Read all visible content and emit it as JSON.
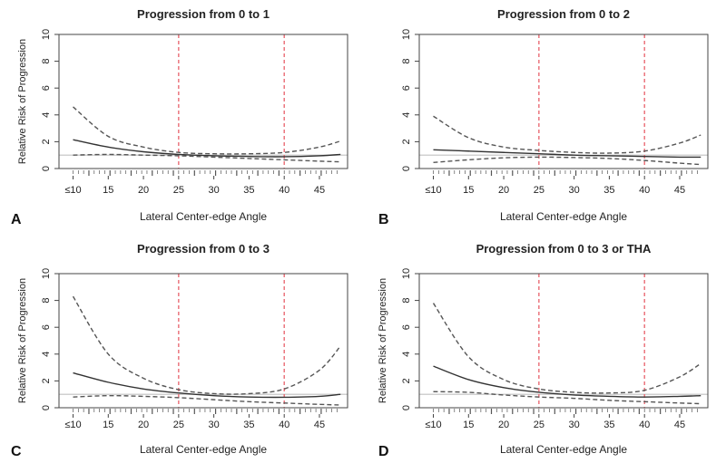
{
  "chart_data": [
    {
      "type": "line",
      "panel_letter": "A",
      "title": "Progression from 0 to  1",
      "xlabel": "Lateral Center-edge Angle",
      "ylabel": "Relative Risk of Progression",
      "xlim": [
        8,
        49
      ],
      "ylim": [
        0,
        10
      ],
      "x_ticks": [
        10,
        15,
        20,
        25,
        30,
        35,
        40,
        45
      ],
      "x_tick_labels": [
        "≤10",
        "15",
        "20",
        "25",
        "30",
        "35",
        "40",
        "45"
      ],
      "y_ticks": [
        0,
        2,
        4,
        6,
        8,
        10
      ],
      "reference_lines_x": [
        25,
        40
      ],
      "reference_line_y": 1,
      "x": [
        10,
        15,
        20,
        25,
        30,
        35,
        40,
        45,
        48
      ],
      "series": [
        {
          "role": "estimate",
          "values": [
            2.15,
            1.6,
            1.25,
            1.05,
            0.95,
            0.9,
            0.88,
            0.95,
            1.05
          ]
        },
        {
          "role": "upper_ci",
          "values": [
            4.6,
            2.4,
            1.6,
            1.2,
            1.1,
            1.1,
            1.2,
            1.6,
            2.05
          ]
        },
        {
          "role": "lower_ci",
          "values": [
            1.0,
            1.05,
            1.0,
            0.95,
            0.85,
            0.75,
            0.65,
            0.55,
            0.5
          ]
        }
      ]
    },
    {
      "type": "line",
      "panel_letter": "B",
      "title": "Progression from 0 to  2",
      "xlabel": "Lateral Center-edge Angle",
      "ylabel": "",
      "xlim": [
        8,
        49
      ],
      "ylim": [
        0,
        10
      ],
      "x_ticks": [
        10,
        15,
        20,
        25,
        30,
        35,
        40,
        45
      ],
      "x_tick_labels": [
        "≤10",
        "15",
        "20",
        "25",
        "30",
        "35",
        "40",
        "45"
      ],
      "y_ticks": [
        0,
        2,
        4,
        6,
        8,
        10
      ],
      "reference_lines_x": [
        25,
        40
      ],
      "reference_line_y": 1,
      "x": [
        10,
        15,
        20,
        25,
        30,
        35,
        40,
        45,
        48
      ],
      "series": [
        {
          "role": "estimate",
          "values": [
            1.4,
            1.3,
            1.2,
            1.1,
            1.0,
            0.95,
            0.9,
            0.85,
            0.85
          ]
        },
        {
          "role": "upper_ci",
          "values": [
            3.9,
            2.3,
            1.6,
            1.35,
            1.2,
            1.15,
            1.3,
            1.9,
            2.5
          ]
        },
        {
          "role": "lower_ci",
          "values": [
            0.45,
            0.65,
            0.8,
            0.85,
            0.82,
            0.75,
            0.6,
            0.4,
            0.3
          ]
        }
      ]
    },
    {
      "type": "line",
      "panel_letter": "C",
      "title": "Progression from 0 to  3",
      "xlabel": "Lateral Center-edge Angle",
      "ylabel": "Relative Risk of Progression",
      "xlim": [
        8,
        49
      ],
      "ylim": [
        0,
        10
      ],
      "x_ticks": [
        10,
        15,
        20,
        25,
        30,
        35,
        40,
        45
      ],
      "x_tick_labels": [
        "≤10",
        "15",
        "20",
        "25",
        "30",
        "35",
        "40",
        "45"
      ],
      "y_ticks": [
        0,
        2,
        4,
        6,
        8,
        10
      ],
      "reference_lines_x": [
        25,
        40
      ],
      "reference_line_y": 1,
      "x": [
        10,
        15,
        20,
        25,
        30,
        35,
        40,
        45,
        48
      ],
      "series": [
        {
          "role": "estimate",
          "values": [
            2.6,
            1.9,
            1.4,
            1.1,
            0.9,
            0.8,
            0.78,
            0.85,
            1.0
          ]
        },
        {
          "role": "upper_ci",
          "values": [
            8.3,
            4.0,
            2.2,
            1.35,
            1.05,
            1.05,
            1.4,
            2.8,
            4.6
          ]
        },
        {
          "role": "lower_ci",
          "values": [
            0.8,
            0.9,
            0.85,
            0.75,
            0.6,
            0.45,
            0.35,
            0.25,
            0.2
          ]
        }
      ]
    },
    {
      "type": "line",
      "panel_letter": "D",
      "title": "Progression from 0 to  3 or THA",
      "xlabel": "Lateral Center-edge Angle",
      "ylabel": "Relative Risk of Progression",
      "xlim": [
        8,
        49
      ],
      "ylim": [
        0,
        10
      ],
      "x_ticks": [
        10,
        15,
        20,
        25,
        30,
        35,
        40,
        45
      ],
      "x_tick_labels": [
        "≤10",
        "15",
        "20",
        "25",
        "30",
        "35",
        "40",
        "45"
      ],
      "y_ticks": [
        0,
        2,
        4,
        6,
        8,
        10
      ],
      "reference_lines_x": [
        25,
        40
      ],
      "reference_line_y": 1,
      "x": [
        10,
        15,
        20,
        25,
        30,
        35,
        40,
        45,
        48
      ],
      "series": [
        {
          "role": "estimate",
          "values": [
            3.1,
            2.1,
            1.5,
            1.15,
            0.95,
            0.85,
            0.8,
            0.85,
            0.9
          ]
        },
        {
          "role": "upper_ci",
          "values": [
            7.8,
            3.8,
            2.1,
            1.4,
            1.15,
            1.1,
            1.3,
            2.3,
            3.3
          ]
        },
        {
          "role": "lower_ci",
          "values": [
            1.2,
            1.15,
            0.95,
            0.8,
            0.7,
            0.55,
            0.45,
            0.35,
            0.3
          ]
        }
      ]
    }
  ],
  "colors": {
    "estimate_line": "#333333",
    "ci_line": "#555555",
    "reference_vertical": "#e8606a",
    "reference_horizontal": "#c0c0c0",
    "rug": "#555555",
    "axes": "#444444"
  }
}
